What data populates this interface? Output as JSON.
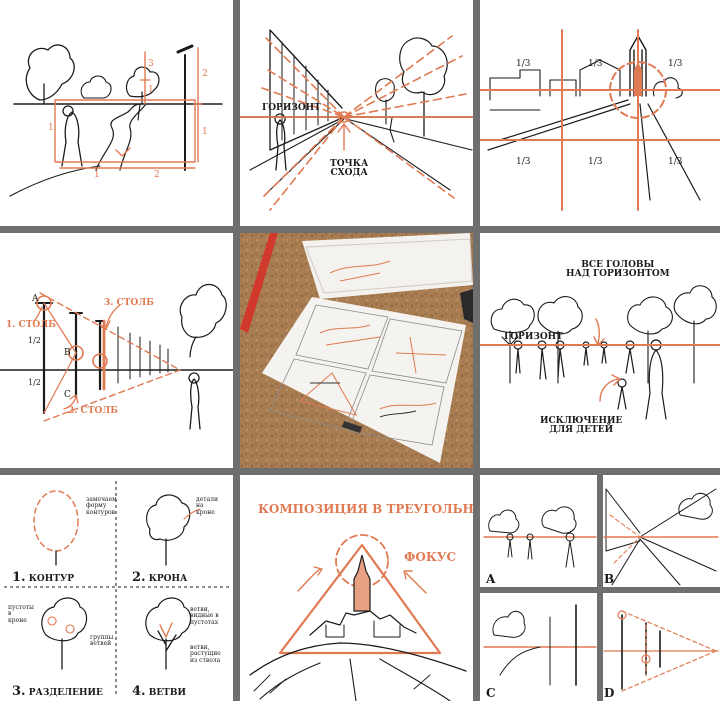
{
  "colors": {
    "accent": "#e07a52",
    "ink": "#1b1b1b",
    "gutter": "#6f6f6f",
    "paper": "#ffffff",
    "cork": "#a87d52"
  },
  "tile1": {
    "n1": "1",
    "n2": "2",
    "n3": "3",
    "n1b": "1",
    "n2b": "2",
    "n1c": "1",
    "n1d": "1"
  },
  "tile2": {
    "horizon": "ГОРИЗОНТ",
    "vanishing_point": "ТОЧКА\nСХОДА"
  },
  "tile3": {
    "t1": "1/3",
    "t2": "1/3",
    "t3": "1/3",
    "b1": "1/3",
    "b2": "1/3",
    "b3": "1/3"
  },
  "tile4": {
    "pole1": "1. СТОЛБ",
    "pole2": "2. СТОЛБ",
    "pole3": "3. СТОЛБ",
    "a": "A",
    "b": "B",
    "c": "C",
    "half1": "1/2",
    "half2": "1/2"
  },
  "tile6": {
    "title": "ВСЕ ГОЛОВЫ\nНАД ГОРИЗОНТОМ",
    "horizon": "ГОРИЗОНТ",
    "exception": "ИСКЛЮЧЕНИЕ\nДЛЯ ДЕТЕЙ"
  },
  "tile7": {
    "note1": "замечаем\nформу\nконтуров",
    "note2": "детали\nна\nкроне",
    "note3": "пустоты\nв\nкроне",
    "note4": "группы\nветвей",
    "note5": "ветви,\nвидные в\nпустотах",
    "note6": "ветви,\nрастущие\nиз ствола",
    "s1": "1.",
    "s1t": "КОНТУР",
    "s2": "2.",
    "s2t": "КРОНА",
    "s3": "3.",
    "s3t": "РАЗДЕЛЕНИЕ",
    "s4": "4.",
    "s4t": "ВЕТВИ"
  },
  "tile8": {
    "title": "КОМПОЗИЦИЯ В ТРЕУГОЛЬНИКЕ",
    "focus": "ФОКУС"
  },
  "tile9": {
    "a": "A",
    "b": "B",
    "c": "C",
    "d": "D"
  }
}
